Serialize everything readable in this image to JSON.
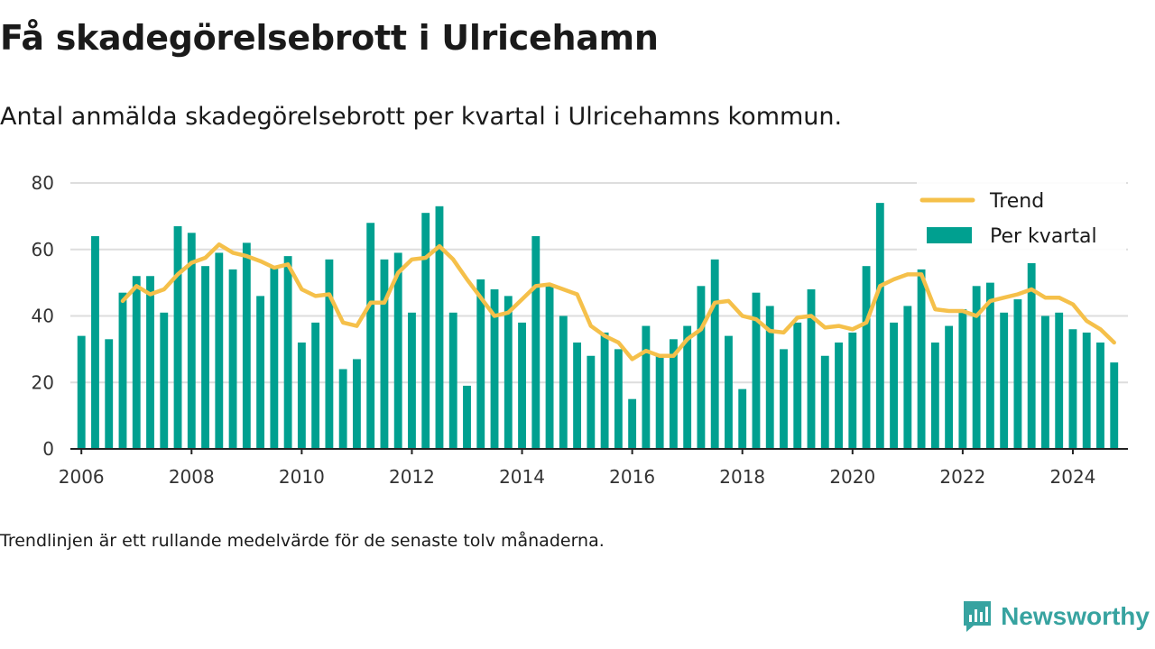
{
  "header": {
    "title": "Få skadegörelsebrott i Ulricehamn",
    "subtitle": "Antal anmälda skadegörelsebrott per kvartal i Ulricehamns kommun."
  },
  "footnote": "Trendlinjen är ett rullande medelvärde för de senaste tolv månaderna.",
  "brand": {
    "name": "Newsworthy",
    "icon": "newsworthy-logo-icon"
  },
  "colors": {
    "bar": "#00a090",
    "trend": "#f5c04a",
    "grid": "#dddddd",
    "axis": "#222222",
    "brand": "#37a3a0"
  },
  "chart_data": {
    "type": "bar",
    "xlim": [
      2005.8,
      2025.0
    ],
    "ylim": [
      0,
      80
    ],
    "yticks": [
      0,
      20,
      40,
      60,
      80
    ],
    "xticks": [
      2006,
      2008,
      2010,
      2012,
      2014,
      2016,
      2018,
      2020,
      2022,
      2024
    ],
    "grid": true,
    "legend_position": "top-right",
    "x": [
      "2006 Q1",
      "2006 Q2",
      "2006 Q3",
      "2006 Q4",
      "2007 Q1",
      "2007 Q2",
      "2007 Q3",
      "2007 Q4",
      "2008 Q1",
      "2008 Q2",
      "2008 Q3",
      "2008 Q4",
      "2009 Q1",
      "2009 Q2",
      "2009 Q3",
      "2009 Q4",
      "2010 Q1",
      "2010 Q2",
      "2010 Q3",
      "2010 Q4",
      "2011 Q1",
      "2011 Q2",
      "2011 Q3",
      "2011 Q4",
      "2012 Q1",
      "2012 Q2",
      "2012 Q3",
      "2012 Q4",
      "2013 Q1",
      "2013 Q2",
      "2013 Q3",
      "2013 Q4",
      "2014 Q1",
      "2014 Q2",
      "2014 Q3",
      "2014 Q4",
      "2015 Q1",
      "2015 Q2",
      "2015 Q3",
      "2015 Q4",
      "2016 Q1",
      "2016 Q2",
      "2016 Q3",
      "2016 Q4",
      "2017 Q1",
      "2017 Q2",
      "2017 Q3",
      "2017 Q4",
      "2018 Q1",
      "2018 Q2",
      "2018 Q3",
      "2018 Q4",
      "2019 Q1",
      "2019 Q2",
      "2019 Q3",
      "2019 Q4",
      "2020 Q1",
      "2020 Q2",
      "2020 Q3",
      "2020 Q4",
      "2021 Q1",
      "2021 Q2",
      "2021 Q3",
      "2021 Q4",
      "2022 Q1",
      "2022 Q2",
      "2022 Q3",
      "2022 Q4",
      "2023 Q1",
      "2023 Q2",
      "2023 Q3",
      "2023 Q4",
      "2024 Q1",
      "2024 Q2",
      "2024 Q3",
      "2024 Q4"
    ],
    "series": [
      {
        "name": "Per kvartal",
        "type": "bar",
        "values": [
          34,
          64,
          33,
          47,
          52,
          52,
          41,
          67,
          65,
          55,
          59,
          54,
          62,
          46,
          55,
          58,
          32,
          38,
          57,
          24,
          27,
          68,
          57,
          59,
          41,
          71,
          73,
          41,
          19,
          51,
          48,
          46,
          38,
          64,
          49,
          40,
          32,
          28,
          35,
          30,
          15,
          37,
          28,
          33,
          37,
          49,
          57,
          34,
          18,
          47,
          43,
          30,
          38,
          48,
          28,
          32,
          35,
          55,
          74,
          38,
          43,
          54,
          32,
          37,
          42,
          49,
          50,
          41,
          45,
          56,
          40,
          41,
          36,
          35,
          32,
          26
        ]
      },
      {
        "name": "Trend",
        "type": "line",
        "values": [
          null,
          null,
          null,
          44.5,
          49,
          46.5,
          48,
          52.5,
          56,
          57.5,
          61.5,
          59,
          58,
          56.5,
          54.5,
          55.5,
          48,
          46,
          46.5,
          38,
          37,
          44,
          44,
          53,
          57,
          57.5,
          61,
          57,
          51,
          45.5,
          40,
          41,
          45,
          49,
          49.5,
          48,
          46.5,
          37,
          34,
          32,
          27,
          29.5,
          28,
          28,
          33,
          36,
          44,
          44.5,
          40,
          39,
          35.5,
          35,
          39.5,
          40,
          36.5,
          37,
          36,
          38,
          49,
          51,
          52.5,
          52.5,
          42,
          41.5,
          41.5,
          40,
          44.5,
          45.5,
          46.5,
          48,
          45.5,
          45.5,
          43.5,
          38.5,
          36,
          32
        ]
      }
    ]
  }
}
